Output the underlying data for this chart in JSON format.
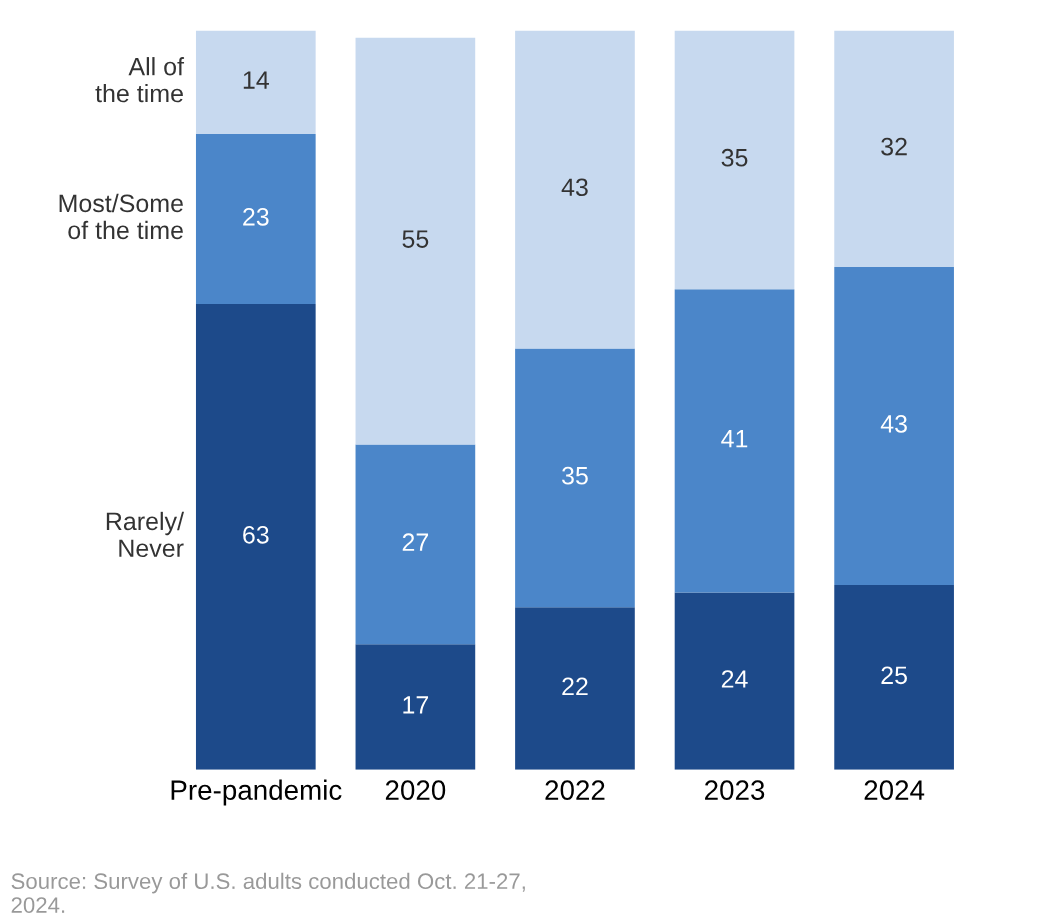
{
  "chart_data": {
    "type": "bar",
    "stacked": true,
    "data_labels": true,
    "categories": [
      "Pre-pandemic",
      "2020",
      "2022",
      "2023",
      "2024"
    ],
    "series": [
      {
        "name": "Rarely/\nNever",
        "color": "#1d4a8a",
        "values": [
          63,
          17,
          22,
          24,
          25
        ]
      },
      {
        "name": "Most/Some\nof the time",
        "color": "#4b86c9",
        "values": [
          23,
          27,
          35,
          41,
          43
        ]
      },
      {
        "name": "All of\nthe time",
        "color": "#c7d9ef",
        "values": [
          14,
          55,
          43,
          35,
          32
        ]
      }
    ],
    "annotations": [
      "Source: Survey of U.S. adults conducted Oct. 21-27,\n2024."
    ]
  }
}
